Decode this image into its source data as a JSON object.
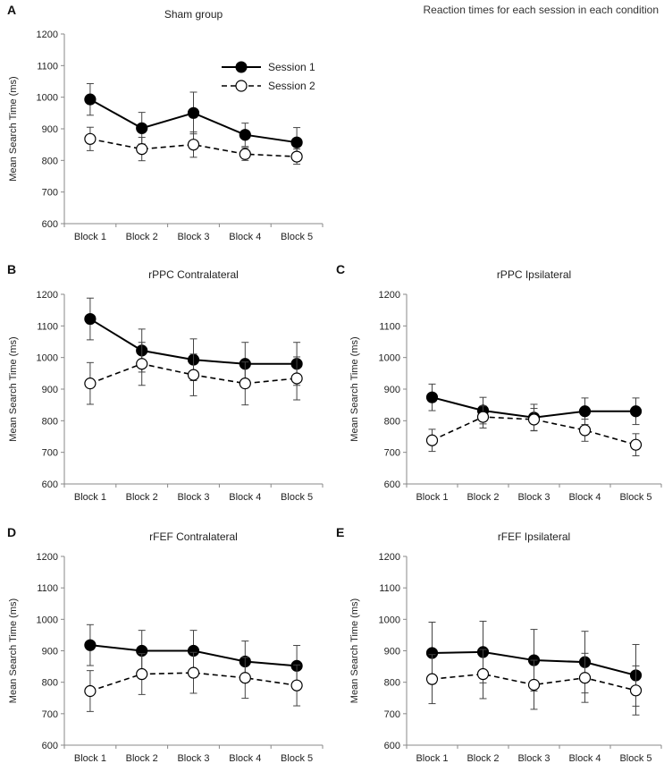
{
  "figure_title": "Reaction times for each session in each condition",
  "legend": {
    "series1": "Session 1",
    "series2": "Session 2"
  },
  "chart_data": [
    {
      "panel": "A",
      "type": "line",
      "title": "Sham group",
      "xlabel": "",
      "ylabel": "Mean Search Time (ms)",
      "categories": [
        "Block 1",
        "Block 2",
        "Block 3",
        "Block 4",
        "Block 5"
      ],
      "ylim": [
        600,
        1200
      ],
      "yticks": [
        600,
        700,
        800,
        900,
        1000,
        1100,
        1200
      ],
      "legend_position": "top-right",
      "series": [
        {
          "name": "Session 1",
          "values": [
            993,
            902,
            950,
            881,
            857
          ],
          "errors": [
            50,
            50,
            66,
            37,
            47
          ]
        },
        {
          "name": "Session 2",
          "values": [
            868,
            836,
            850,
            820,
            812
          ],
          "errors": [
            37,
            37,
            40,
            20,
            24
          ]
        }
      ]
    },
    {
      "panel": "B",
      "type": "line",
      "title": "rPPC Contralateral",
      "xlabel": "",
      "ylabel": "Mean Search Time (ms)",
      "categories": [
        "Block 1",
        "Block 2",
        "Block 3",
        "Block 4",
        "Block 5"
      ],
      "ylim": [
        600,
        1200
      ],
      "yticks": [
        600,
        700,
        800,
        900,
        1000,
        1100,
        1200
      ],
      "series": [
        {
          "name": "Session 1",
          "values": [
            1122,
            1022,
            993,
            980,
            980
          ],
          "errors": [
            66,
            68,
            66,
            68,
            68
          ]
        },
        {
          "name": "Session 2",
          "values": [
            918,
            980,
            945,
            918,
            934
          ],
          "errors": [
            66,
            68,
            66,
            68,
            68
          ]
        }
      ]
    },
    {
      "panel": "C",
      "type": "line",
      "title": "rPPC Ipsilateral",
      "xlabel": "",
      "ylabel": "Mean Search Time (ms)",
      "categories": [
        "Block 1",
        "Block 2",
        "Block 3",
        "Block 4",
        "Block 5"
      ],
      "ylim": [
        600,
        1200
      ],
      "yticks": [
        600,
        700,
        800,
        900,
        1000,
        1100,
        1200
      ],
      "series": [
        {
          "name": "Session 1",
          "values": [
            874,
            832,
            810,
            830,
            830
          ],
          "errors": [
            42,
            42,
            42,
            42,
            42
          ]
        },
        {
          "name": "Session 2",
          "values": [
            738,
            812,
            804,
            770,
            724
          ],
          "errors": [
            35,
            35,
            35,
            35,
            35
          ]
        }
      ]
    },
    {
      "panel": "D",
      "type": "line",
      "title": "rFEF Contralateral",
      "xlabel": "",
      "ylabel": "Mean Search Time (ms)",
      "categories": [
        "Block 1",
        "Block 2",
        "Block 3",
        "Block 4",
        "Block 5"
      ],
      "ylim": [
        600,
        1200
      ],
      "yticks": [
        600,
        700,
        800,
        900,
        1000,
        1100,
        1200
      ],
      "series": [
        {
          "name": "Session 1",
          "values": [
            918,
            900,
            900,
            866,
            852
          ],
          "errors": [
            65,
            65,
            65,
            65,
            65
          ]
        },
        {
          "name": "Session 2",
          "values": [
            772,
            826,
            830,
            814,
            790
          ],
          "errors": [
            65,
            65,
            65,
            65,
            65
          ]
        }
      ]
    },
    {
      "panel": "E",
      "type": "line",
      "title": "rFEF Ipsilateral",
      "xlabel": "",
      "ylabel": "Mean Search Time (ms)",
      "categories": [
        "Block 1",
        "Block 2",
        "Block 3",
        "Block 4",
        "Block 5"
      ],
      "ylim": [
        600,
        1200
      ],
      "yticks": [
        600,
        700,
        800,
        900,
        1000,
        1100,
        1200
      ],
      "series": [
        {
          "name": "Session 1",
          "values": [
            893,
            896,
            870,
            864,
            822
          ],
          "errors": [
            98,
            98,
            98,
            98,
            98
          ]
        },
        {
          "name": "Session 2",
          "values": [
            810,
            826,
            792,
            814,
            774
          ],
          "errors": [
            78,
            78,
            78,
            78,
            78
          ]
        }
      ]
    }
  ]
}
